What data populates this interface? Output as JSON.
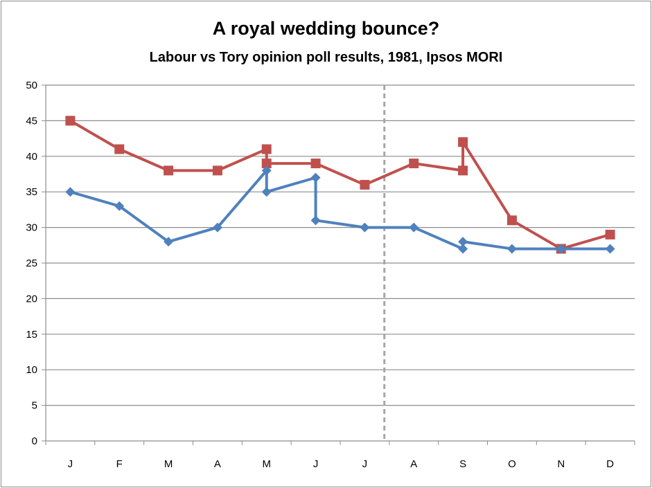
{
  "chart_data": {
    "type": "line",
    "title": "A royal wedding bounce?",
    "subtitle": "Labour vs Tory opinion poll results, 1981, Ipsos MORI",
    "categories": [
      "J",
      "F",
      "M",
      "A",
      "M",
      "J",
      "J",
      "A",
      "S",
      "O",
      "N",
      "D"
    ],
    "ylim": [
      0,
      50
    ],
    "yticks": [
      0,
      5,
      10,
      15,
      20,
      25,
      30,
      35,
      40,
      45,
      50
    ],
    "grid": true,
    "annotation": "dashed vertical line between July and August",
    "series": [
      {
        "name": "Red series",
        "color": "#C0504D",
        "marker": "square",
        "points": [
          [
            0,
            45
          ],
          [
            1,
            41
          ],
          [
            2,
            38
          ],
          [
            3,
            38
          ],
          [
            4,
            41
          ],
          [
            4,
            39
          ],
          [
            5,
            39
          ],
          [
            6,
            36
          ],
          [
            7,
            39
          ],
          [
            8,
            38
          ],
          [
            8,
            42
          ],
          [
            9,
            31
          ],
          [
            10,
            27
          ],
          [
            11,
            29
          ]
        ]
      },
      {
        "name": "Blue series",
        "color": "#4F81BD",
        "marker": "diamond",
        "points": [
          [
            0,
            35
          ],
          [
            1,
            33
          ],
          [
            2,
            28
          ],
          [
            3,
            30
          ],
          [
            4,
            38
          ],
          [
            4,
            35
          ],
          [
            5,
            37
          ],
          [
            5,
            31
          ],
          [
            6,
            30
          ],
          [
            7,
            30
          ],
          [
            8,
            27
          ],
          [
            8,
            28
          ],
          [
            9,
            27
          ],
          [
            10,
            27
          ],
          [
            11,
            27
          ]
        ]
      }
    ]
  }
}
